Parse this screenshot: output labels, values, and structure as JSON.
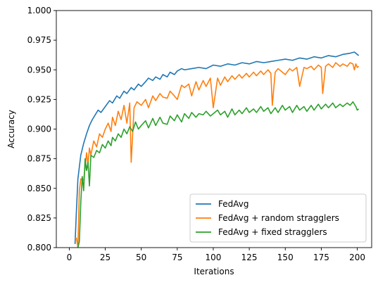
{
  "chart_data": {
    "type": "line",
    "title": "",
    "xlabel": "Iterations",
    "ylabel": "Accuracy",
    "xlim": [
      -9,
      210
    ],
    "ylim": [
      0.8,
      1.0
    ],
    "xticks": [
      0,
      25,
      50,
      75,
      100,
      125,
      150,
      175,
      200
    ],
    "yticks": [
      0.8,
      0.825,
      0.85,
      0.875,
      0.9,
      0.925,
      0.95,
      0.975,
      1.0
    ],
    "xtick_labels": [
      "0",
      "25",
      "50",
      "75",
      "100",
      "125",
      "150",
      "175",
      "200"
    ],
    "ytick_labels": [
      "0.800",
      "0.825",
      "0.850",
      "0.875",
      "0.900",
      "0.925",
      "0.950",
      "0.975",
      "1.000"
    ],
    "grid": false,
    "legend_position": "lower-right",
    "series": [
      {
        "name": "FedAvg",
        "color": "#1f77b4",
        "x": [
          4,
          5,
          6,
          7,
          8,
          10,
          12,
          14,
          16,
          18,
          20,
          22,
          25,
          28,
          30,
          33,
          35,
          38,
          40,
          43,
          45,
          48,
          50,
          53,
          55,
          58,
          60,
          63,
          65,
          68,
          70,
          73,
          75,
          78,
          80,
          85,
          90,
          95,
          100,
          105,
          110,
          115,
          120,
          125,
          130,
          135,
          140,
          145,
          150,
          155,
          160,
          165,
          170,
          175,
          180,
          185,
          190,
          195,
          198,
          201
        ],
        "y": [
          0.803,
          0.832,
          0.858,
          0.868,
          0.878,
          0.888,
          0.896,
          0.903,
          0.908,
          0.912,
          0.916,
          0.914,
          0.919,
          0.924,
          0.922,
          0.928,
          0.926,
          0.932,
          0.93,
          0.935,
          0.933,
          0.938,
          0.936,
          0.94,
          0.943,
          0.941,
          0.944,
          0.942,
          0.946,
          0.944,
          0.948,
          0.946,
          0.949,
          0.951,
          0.95,
          0.951,
          0.952,
          0.951,
          0.954,
          0.953,
          0.955,
          0.954,
          0.956,
          0.955,
          0.957,
          0.956,
          0.957,
          0.958,
          0.959,
          0.958,
          0.96,
          0.959,
          0.961,
          0.96,
          0.962,
          0.961,
          0.963,
          0.964,
          0.965,
          0.962
        ]
      },
      {
        "name": "FedAvg + random stragglers",
        "color": "#ff7f0e",
        "x": [
          4,
          5,
          6,
          7,
          8,
          10,
          11,
          12,
          13,
          14,
          15,
          17,
          19,
          21,
          23,
          25,
          27,
          29,
          30,
          32,
          34,
          36,
          38,
          40,
          42,
          43,
          45,
          47,
          50,
          53,
          55,
          58,
          60,
          63,
          65,
          68,
          70,
          73,
          75,
          78,
          80,
          83,
          85,
          88,
          90,
          93,
          95,
          98,
          100,
          103,
          105,
          108,
          110,
          113,
          115,
          118,
          120,
          123,
          125,
          128,
          130,
          133,
          135,
          138,
          140,
          141,
          143,
          145,
          148,
          150,
          153,
          155,
          158,
          160,
          163,
          165,
          168,
          170,
          173,
          175,
          176,
          178,
          180,
          183,
          185,
          188,
          190,
          193,
          195,
          197,
          198,
          199,
          200,
          201
        ],
        "y": [
          0.808,
          0.808,
          0.8,
          0.848,
          0.858,
          0.857,
          0.868,
          0.88,
          0.87,
          0.884,
          0.878,
          0.89,
          0.885,
          0.896,
          0.893,
          0.9,
          0.905,
          0.898,
          0.91,
          0.903,
          0.915,
          0.908,
          0.92,
          0.905,
          0.922,
          0.872,
          0.918,
          0.923,
          0.92,
          0.925,
          0.918,
          0.928,
          0.924,
          0.93,
          0.927,
          0.926,
          0.932,
          0.928,
          0.925,
          0.937,
          0.935,
          0.938,
          0.928,
          0.94,
          0.933,
          0.941,
          0.936,
          0.943,
          0.918,
          0.943,
          0.937,
          0.944,
          0.94,
          0.945,
          0.942,
          0.946,
          0.943,
          0.947,
          0.944,
          0.948,
          0.945,
          0.949,
          0.946,
          0.95,
          0.947,
          0.92,
          0.948,
          0.951,
          0.948,
          0.946,
          0.951,
          0.949,
          0.952,
          0.936,
          0.952,
          0.951,
          0.953,
          0.95,
          0.954,
          0.952,
          0.93,
          0.953,
          0.955,
          0.952,
          0.956,
          0.953,
          0.955,
          0.953,
          0.956,
          0.955,
          0.95,
          0.955,
          0.952,
          0.953
        ]
      },
      {
        "name": "FedAvg + fixed stragglers",
        "color": "#2ca02c",
        "x": [
          6,
          7,
          8,
          9,
          10,
          11,
          12,
          13,
          14,
          15,
          17,
          19,
          21,
          23,
          25,
          27,
          29,
          30,
          32,
          34,
          36,
          38,
          40,
          42,
          44,
          46,
          48,
          50,
          53,
          55,
          58,
          60,
          63,
          65,
          68,
          70,
          73,
          75,
          78,
          80,
          83,
          85,
          88,
          90,
          93,
          95,
          98,
          100,
          103,
          105,
          108,
          110,
          113,
          115,
          118,
          120,
          123,
          125,
          128,
          130,
          133,
          135,
          138,
          140,
          143,
          145,
          148,
          150,
          153,
          155,
          158,
          160,
          163,
          165,
          168,
          170,
          173,
          175,
          178,
          180,
          183,
          185,
          188,
          190,
          193,
          195,
          197,
          198,
          199,
          200,
          201
        ],
        "y": [
          0.8,
          0.805,
          0.838,
          0.86,
          0.848,
          0.875,
          0.865,
          0.872,
          0.852,
          0.878,
          0.876,
          0.882,
          0.88,
          0.887,
          0.884,
          0.89,
          0.886,
          0.893,
          0.89,
          0.896,
          0.893,
          0.9,
          0.896,
          0.902,
          0.898,
          0.906,
          0.9,
          0.903,
          0.907,
          0.901,
          0.909,
          0.903,
          0.91,
          0.905,
          0.904,
          0.911,
          0.907,
          0.912,
          0.906,
          0.913,
          0.909,
          0.914,
          0.91,
          0.913,
          0.912,
          0.915,
          0.911,
          0.913,
          0.916,
          0.912,
          0.915,
          0.91,
          0.917,
          0.912,
          0.916,
          0.913,
          0.918,
          0.914,
          0.917,
          0.914,
          0.919,
          0.915,
          0.918,
          0.913,
          0.918,
          0.914,
          0.92,
          0.916,
          0.919,
          0.914,
          0.92,
          0.916,
          0.919,
          0.915,
          0.92,
          0.916,
          0.921,
          0.917,
          0.921,
          0.918,
          0.922,
          0.918,
          0.921,
          0.919,
          0.922,
          0.92,
          0.923,
          0.921,
          0.919,
          0.916,
          0.917
        ]
      }
    ]
  }
}
